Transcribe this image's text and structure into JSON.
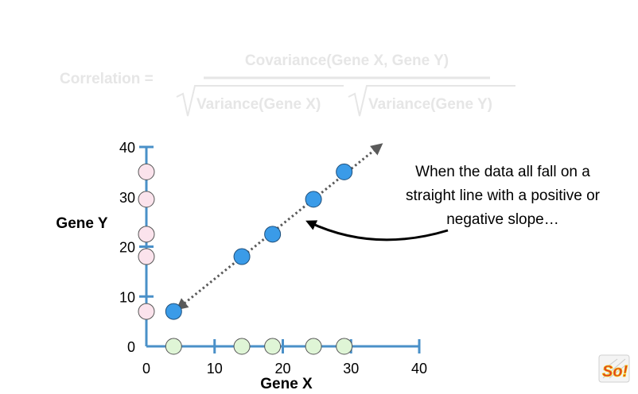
{
  "formula": {
    "lhs": "Correlation =",
    "numerator": "Covariance(Gene X, Gene Y)",
    "denominator_left": "Variance(Gene X)",
    "denominator_right": "Variance(Gene Y)"
  },
  "annotation": {
    "lines": [
      "When the data all fall on a",
      "straight line with a positive or",
      "negative slope…"
    ]
  },
  "chart_data": {
    "type": "scatter",
    "xlabel": "Gene X",
    "ylabel": "Gene Y",
    "xlim": [
      0,
      40
    ],
    "ylim": [
      0,
      40
    ],
    "xticks": [
      "0",
      "10",
      "20",
      "30",
      "40"
    ],
    "yticks": [
      "0",
      "10",
      "20",
      "30",
      "40"
    ],
    "points": [
      {
        "x": 4,
        "y": 7
      },
      {
        "x": 14,
        "y": 18
      },
      {
        "x": 18.5,
        "y": 22.5
      },
      {
        "x": 24.5,
        "y": 29.5
      },
      {
        "x": 29,
        "y": 35
      }
    ],
    "trend_line": {
      "x": [
        5,
        34
      ],
      "y": [
        8,
        40
      ]
    },
    "colors": {
      "axis": "#4a90c8",
      "point": "#3a9be8",
      "x_projection": "#dff5d6",
      "y_projection": "#fbe3ec",
      "formula": "#e6e6e6"
    }
  }
}
